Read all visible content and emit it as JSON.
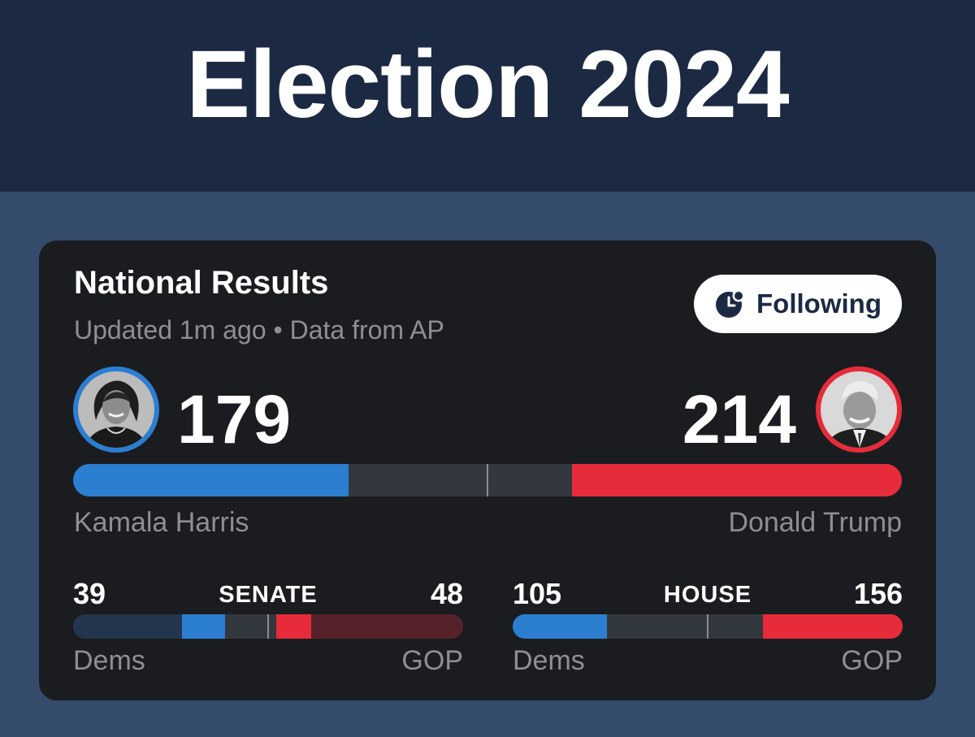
{
  "header": {
    "title": "Election 2024"
  },
  "card": {
    "title": "National Results",
    "subtitle": "Updated 1m ago • Data from AP",
    "follow_label": "Following"
  },
  "colors": {
    "dem": "#2c7ed1",
    "gop": "#e62c3a",
    "dem_dim": "#23364d",
    "gop_dim": "#56222a",
    "neutral": "#33373e"
  },
  "presidential": {
    "dem": {
      "name": "Kamala Harris",
      "votes": "179",
      "avatar": "harris-avatar"
    },
    "gop": {
      "name": "Donald Trump",
      "votes": "214",
      "avatar": "trump-avatar"
    },
    "total": 538,
    "dem_ev": 179,
    "gop_ev": 214
  },
  "senate": {
    "label": "SENATE",
    "dem_seats": "39",
    "gop_seats": "48",
    "dem_label": "Dems",
    "gop_label": "GOP",
    "total": 100,
    "dem_safe": 28,
    "dem_new": 11,
    "gop_new": 9,
    "gop_safe": 39
  },
  "house": {
    "label": "HOUSE",
    "dem_seats": "105",
    "gop_seats": "156",
    "dem_label": "Dems",
    "gop_label": "GOP",
    "total": 435,
    "dem_won": 105,
    "gop_won": 156
  }
}
